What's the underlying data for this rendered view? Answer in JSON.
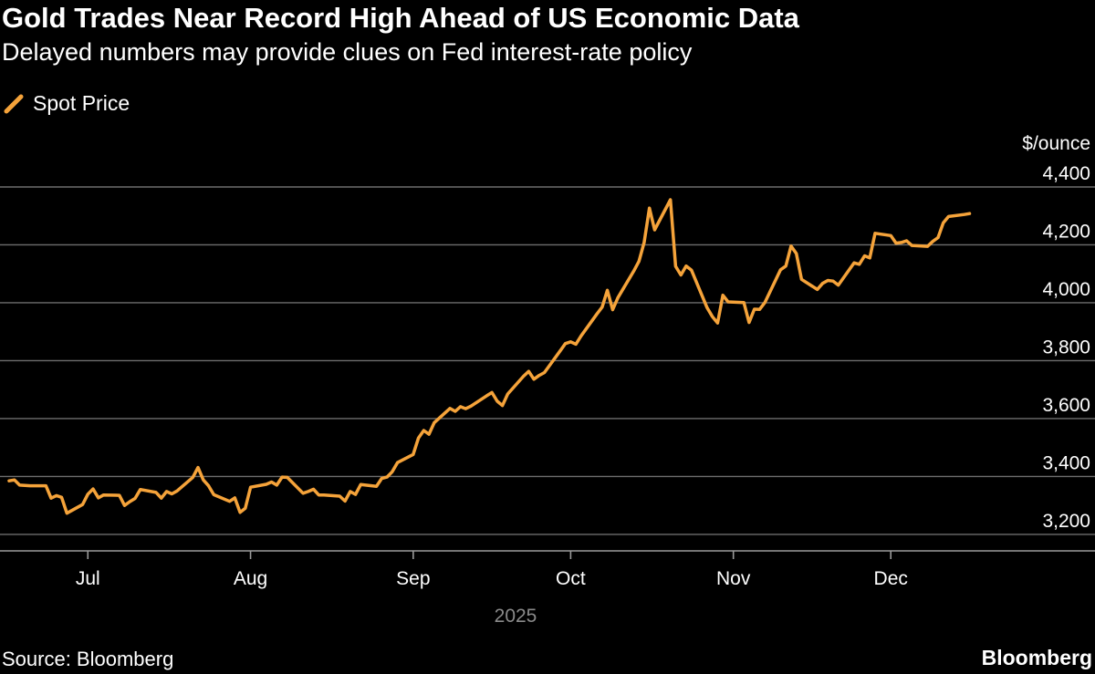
{
  "title": "Gold Trades Near Record High Ahead of US Economic Data",
  "subtitle": "Delayed numbers may provide clues on Fed interest-rate policy",
  "source": "Source: Bloomberg",
  "brand": "Bloomberg",
  "colors": {
    "background": "#000000",
    "series": "#f5a33a",
    "text": "#ffffff",
    "grid": "#6e6e6e"
  },
  "chart_data": {
    "type": "line",
    "ylabel": "$/ounce",
    "ylim": [
      3150,
      4450
    ],
    "yticks": [
      3200,
      3400,
      3600,
      3800,
      4000,
      4200,
      4400
    ],
    "y_tick_labels": [
      "3,200",
      "3,400",
      "3,600",
      "3,800",
      "4,000",
      "4,200",
      "4,400"
    ],
    "xlim": [
      "2025-06-16",
      "2025-12-26"
    ],
    "x_ticks": [
      {
        "date": "2025-07-01",
        "label": "Jul"
      },
      {
        "date": "2025-08-01",
        "label": "Aug"
      },
      {
        "date": "2025-09-01",
        "label": "Sep"
      },
      {
        "date": "2025-10-01",
        "label": "Oct"
      },
      {
        "date": "2025-11-01",
        "label": "Nov"
      },
      {
        "date": "2025-12-01",
        "label": "Dec"
      }
    ],
    "x_group_label": "2025",
    "grid": true,
    "legend_position": "top-left",
    "series": [
      {
        "name": "Spot Price",
        "points": [
          [
            "2025-06-16",
            3385
          ],
          [
            "2025-06-17",
            3388
          ],
          [
            "2025-06-18",
            3370
          ],
          [
            "2025-06-19",
            3369
          ],
          [
            "2025-06-20",
            3368
          ],
          [
            "2025-06-23",
            3368
          ],
          [
            "2025-06-24",
            3325
          ],
          [
            "2025-06-25",
            3334
          ],
          [
            "2025-06-26",
            3328
          ],
          [
            "2025-06-27",
            3273
          ],
          [
            "2025-06-30",
            3303
          ],
          [
            "2025-07-01",
            3339
          ],
          [
            "2025-07-02",
            3357
          ],
          [
            "2025-07-03",
            3326
          ],
          [
            "2025-07-04",
            3336
          ],
          [
            "2025-07-07",
            3335
          ],
          [
            "2025-07-08",
            3300
          ],
          [
            "2025-07-09",
            3313
          ],
          [
            "2025-07-10",
            3324
          ],
          [
            "2025-07-11",
            3355
          ],
          [
            "2025-07-14",
            3345
          ],
          [
            "2025-07-15",
            3325
          ],
          [
            "2025-07-16",
            3348
          ],
          [
            "2025-07-17",
            3340
          ],
          [
            "2025-07-18",
            3350
          ],
          [
            "2025-07-21",
            3397
          ],
          [
            "2025-07-22",
            3431
          ],
          [
            "2025-07-23",
            3388
          ],
          [
            "2025-07-24",
            3368
          ],
          [
            "2025-07-25",
            3337
          ],
          [
            "2025-07-28",
            3314
          ],
          [
            "2025-07-29",
            3326
          ],
          [
            "2025-07-30",
            3276
          ],
          [
            "2025-07-31",
            3290
          ],
          [
            "2025-08-01",
            3363
          ],
          [
            "2025-08-04",
            3373
          ],
          [
            "2025-08-05",
            3381
          ],
          [
            "2025-08-06",
            3370
          ],
          [
            "2025-08-07",
            3398
          ],
          [
            "2025-08-08",
            3397
          ],
          [
            "2025-08-11",
            3342
          ],
          [
            "2025-08-12",
            3348
          ],
          [
            "2025-08-13",
            3356
          ],
          [
            "2025-08-14",
            3336
          ],
          [
            "2025-08-15",
            3336
          ],
          [
            "2025-08-18",
            3332
          ],
          [
            "2025-08-19",
            3315
          ],
          [
            "2025-08-20",
            3348
          ],
          [
            "2025-08-21",
            3338
          ],
          [
            "2025-08-22",
            3372
          ],
          [
            "2025-08-25",
            3366
          ],
          [
            "2025-08-26",
            3393
          ],
          [
            "2025-08-27",
            3398
          ],
          [
            "2025-08-28",
            3416
          ],
          [
            "2025-08-29",
            3448
          ],
          [
            "2025-09-01",
            3476
          ],
          [
            "2025-09-02",
            3533
          ],
          [
            "2025-09-03",
            3559
          ],
          [
            "2025-09-04",
            3546
          ],
          [
            "2025-09-05",
            3586
          ],
          [
            "2025-09-08",
            3635
          ],
          [
            "2025-09-09",
            3625
          ],
          [
            "2025-09-10",
            3641
          ],
          [
            "2025-09-11",
            3634
          ],
          [
            "2025-09-12",
            3643
          ],
          [
            "2025-09-15",
            3679
          ],
          [
            "2025-09-16",
            3690
          ],
          [
            "2025-09-17",
            3660
          ],
          [
            "2025-09-18",
            3645
          ],
          [
            "2025-09-19",
            3685
          ],
          [
            "2025-09-22",
            3746
          ],
          [
            "2025-09-23",
            3763
          ],
          [
            "2025-09-24",
            3736
          ],
          [
            "2025-09-25",
            3749
          ],
          [
            "2025-09-26",
            3759
          ],
          [
            "2025-09-29",
            3834
          ],
          [
            "2025-09-30",
            3859
          ],
          [
            "2025-10-01",
            3865
          ],
          [
            "2025-10-02",
            3857
          ],
          [
            "2025-10-03",
            3886
          ],
          [
            "2025-10-06",
            3961
          ],
          [
            "2025-10-07",
            3985
          ],
          [
            "2025-10-08",
            4043
          ],
          [
            "2025-10-09",
            3976
          ],
          [
            "2025-10-10",
            4018
          ],
          [
            "2025-10-13",
            4109
          ],
          [
            "2025-10-14",
            4143
          ],
          [
            "2025-10-15",
            4208
          ],
          [
            "2025-10-16",
            4327
          ],
          [
            "2025-10-17",
            4252
          ],
          [
            "2025-10-20",
            4356
          ],
          [
            "2025-10-21",
            4126
          ],
          [
            "2025-10-22",
            4096
          ],
          [
            "2025-10-23",
            4127
          ],
          [
            "2025-10-24",
            4113
          ],
          [
            "2025-10-27",
            3983
          ],
          [
            "2025-10-28",
            3952
          ],
          [
            "2025-10-29",
            3930
          ],
          [
            "2025-10-30",
            4026
          ],
          [
            "2025-10-31",
            4003
          ],
          [
            "2025-11-03",
            4001
          ],
          [
            "2025-11-04",
            3932
          ],
          [
            "2025-11-05",
            3978
          ],
          [
            "2025-11-06",
            3977
          ],
          [
            "2025-11-07",
            4001
          ],
          [
            "2025-11-10",
            4114
          ],
          [
            "2025-11-11",
            4127
          ],
          [
            "2025-11-12",
            4196
          ],
          [
            "2025-11-13",
            4170
          ],
          [
            "2025-11-14",
            4081
          ],
          [
            "2025-11-17",
            4046
          ],
          [
            "2025-11-18",
            4067
          ],
          [
            "2025-11-19",
            4077
          ],
          [
            "2025-11-20",
            4075
          ],
          [
            "2025-11-21",
            4061
          ],
          [
            "2025-11-24",
            4138
          ],
          [
            "2025-11-25",
            4133
          ],
          [
            "2025-11-26",
            4162
          ],
          [
            "2025-11-27",
            4155
          ],
          [
            "2025-11-28",
            4240
          ],
          [
            "2025-12-01",
            4232
          ],
          [
            "2025-12-02",
            4206
          ],
          [
            "2025-12-03",
            4208
          ],
          [
            "2025-12-04",
            4214
          ],
          [
            "2025-12-05",
            4198
          ],
          [
            "2025-12-08",
            4195
          ],
          [
            "2025-12-09",
            4212
          ],
          [
            "2025-12-10",
            4225
          ],
          [
            "2025-12-11",
            4276
          ],
          [
            "2025-12-12",
            4298
          ],
          [
            "2025-12-15",
            4305
          ],
          [
            "2025-12-16",
            4308
          ]
        ]
      }
    ]
  }
}
